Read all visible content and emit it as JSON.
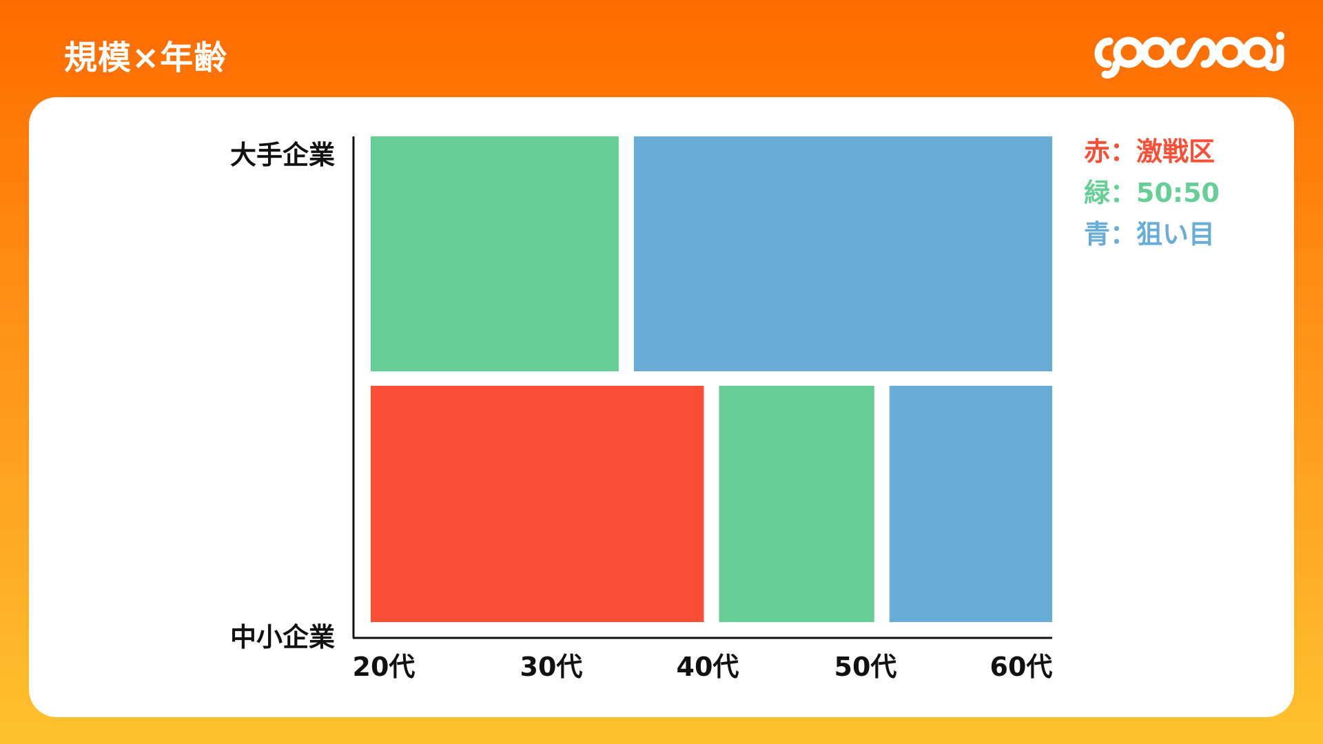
{
  "title": "規模×年齢",
  "logo_text": "yoasooi",
  "colors": {
    "red": "#FA4F37",
    "green": "#66CF96",
    "blue": "#68ADD8"
  },
  "legend": [
    {
      "label": "赤：激戦区",
      "color": "#FA4F37"
    },
    {
      "label": "緑：50:50",
      "color": "#66CF96"
    },
    {
      "label": "青：狙い目",
      "color": "#68ADD8"
    }
  ],
  "chart_data": {
    "type": "mosaic",
    "ylabels": [
      "大手企業",
      "中小企業"
    ],
    "xlabels": [
      "20代",
      "30代",
      "40代",
      "50代",
      "60代"
    ],
    "x_range_age": [
      20,
      60
    ],
    "cells": [
      {
        "row": "大手企業",
        "from": 20,
        "to": 35,
        "category": "緑",
        "color": "#66CF96"
      },
      {
        "row": "大手企業",
        "from": 35,
        "to": 60,
        "category": "青",
        "color": "#68ADD8"
      },
      {
        "row": "中小企業",
        "from": 20,
        "to": 40,
        "category": "赤",
        "color": "#FA4F37"
      },
      {
        "row": "中小企業",
        "from": 40,
        "to": 50,
        "category": "緑",
        "color": "#66CF96"
      },
      {
        "row": "中小企業",
        "from": 50,
        "to": 60,
        "category": "青",
        "color": "#68ADD8"
      }
    ]
  }
}
